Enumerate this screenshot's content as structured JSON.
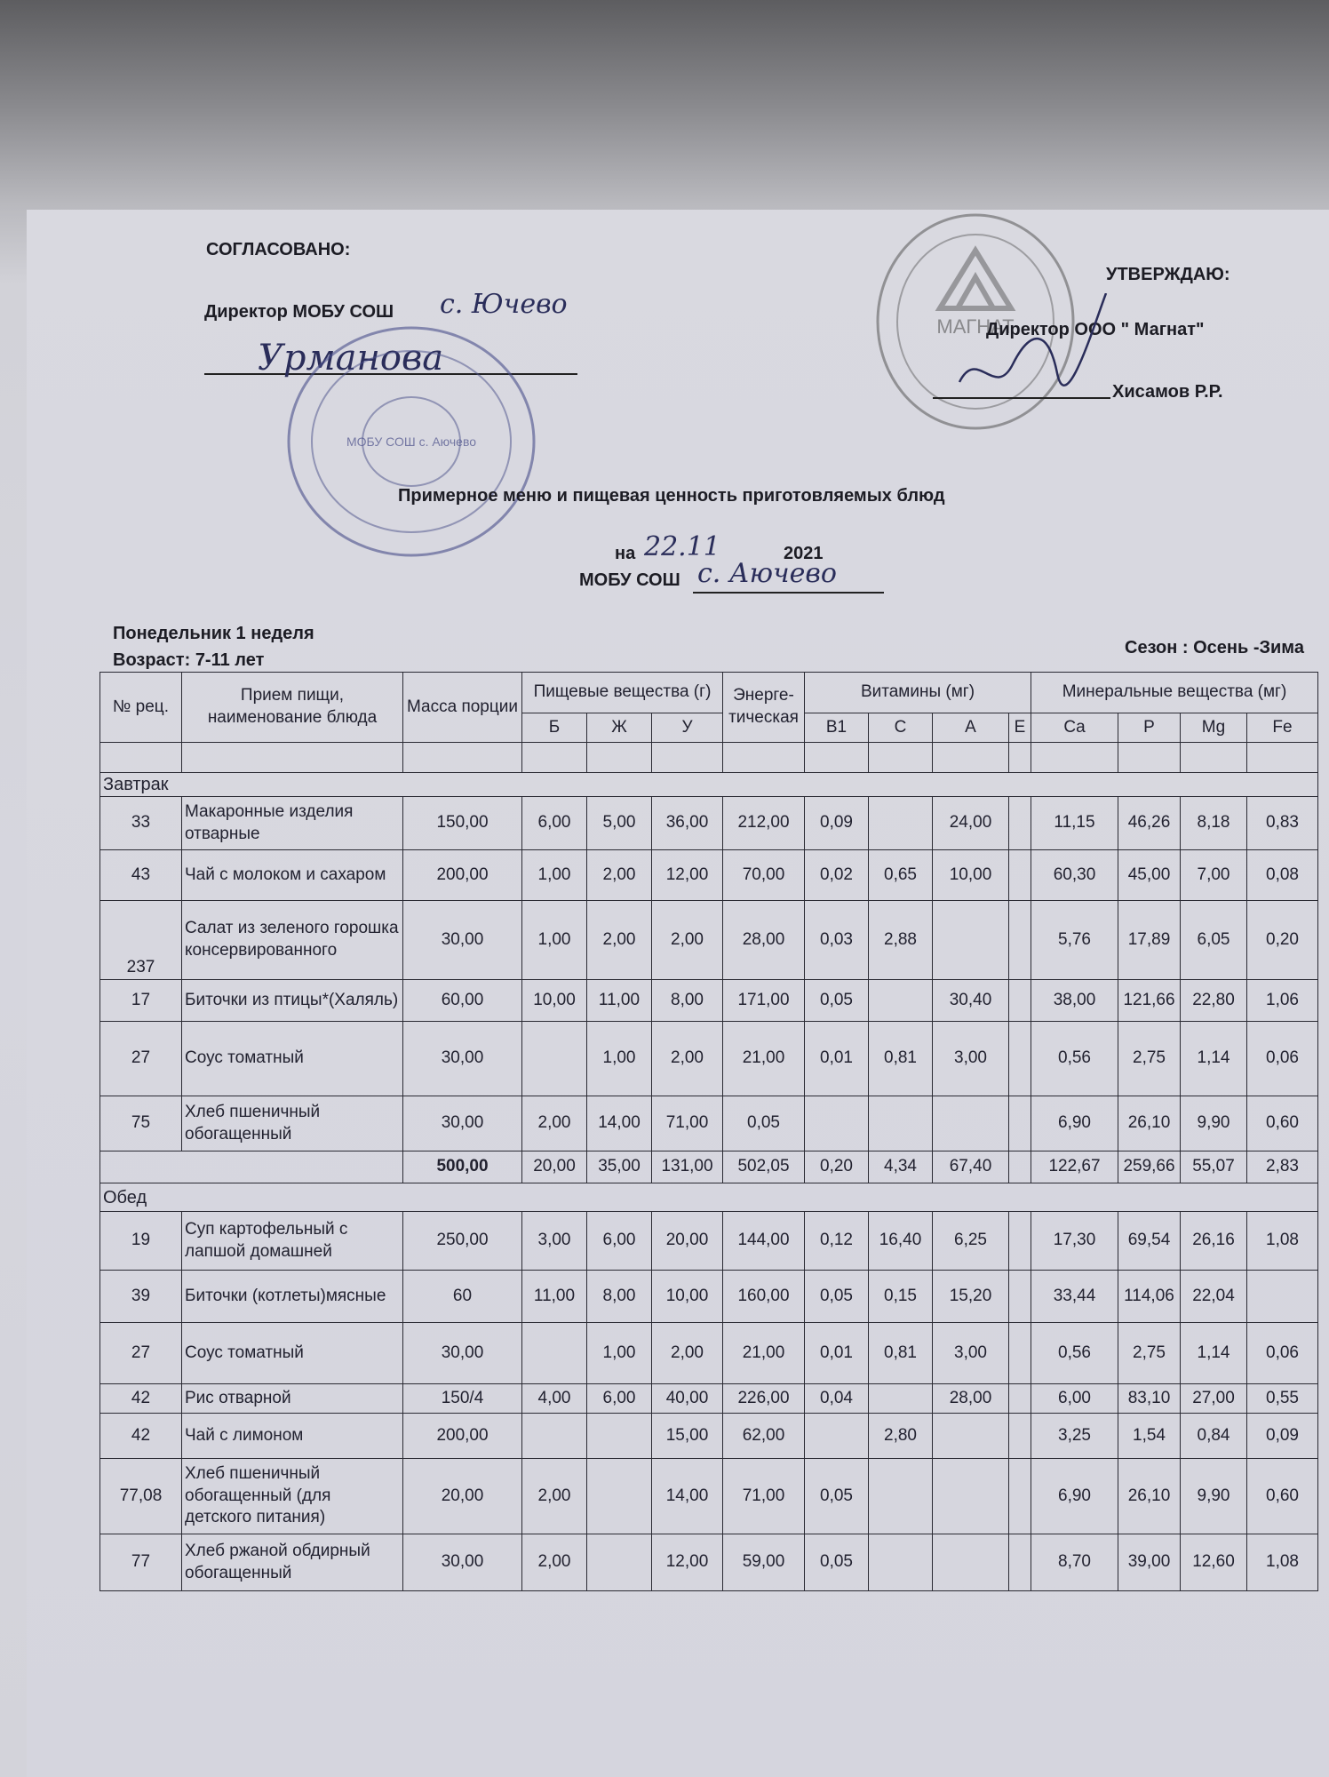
{
  "header": {
    "agreed": "СОГЛАСОВАНО:",
    "agreed_by": "Директор МОБУ СОШ",
    "agreed_by_place_hand": "с. Ючево",
    "agreed_signature": "Урманова",
    "approve": "УТВЕРЖДАЮ:",
    "approve_by": "Директор ООО \" Магнат\"",
    "approve_name": "Хисамов Р.Р.",
    "stamp_left_text": "МОБУ СОШ с. Аючево",
    "stamp_right_text": "МАГНАТ"
  },
  "title": {
    "main": "Примерное меню и пищевая ценность приготовляемых блюд",
    "date_prefix": "на",
    "date_hand": "22.11",
    "year": "2021",
    "school": "МОБУ СОШ",
    "school_hand": "с. Аючево"
  },
  "meta": {
    "day": "Понедельник 1 неделя",
    "age": "Возраст: 7-11 лет",
    "season": "Сезон : Осень -Зима"
  },
  "table": {
    "headers": {
      "num": "№ рец.",
      "name": "Прием пищи, наименование блюда",
      "mass": "Масса порции",
      "nutrients": "Пищевые вещества (г)",
      "energy": "Энерге-тическая",
      "vitamins": "Витамины (мг)",
      "minerals": "Минеральные вещества (мг)",
      "sub": [
        "Б",
        "Ж",
        "У",
        "В1",
        "С",
        "А",
        "Е",
        "Ca",
        "P",
        "Mg",
        "Fe"
      ]
    },
    "sections": [
      {
        "title": "Завтрак",
        "rows": [
          [
            "33",
            "Макаронные изделия отварные",
            "150,00",
            "6,00",
            "5,00",
            "36,00",
            "212,00",
            "0,09",
            "",
            "24,00",
            "",
            "11,15",
            "46,26",
            "8,18",
            "0,83"
          ],
          [
            "43",
            "Чай с молоком и сахаром",
            "200,00",
            "1,00",
            "2,00",
            "12,00",
            "70,00",
            "0,02",
            "0,65",
            "10,00",
            "",
            "60,30",
            "45,00",
            "7,00",
            "0,08"
          ],
          [
            "237",
            "Салат из зеленого горошка консервированного",
            "30,00",
            "1,00",
            "2,00",
            "2,00",
            "28,00",
            "0,03",
            "2,88",
            "",
            "",
            "5,76",
            "17,89",
            "6,05",
            "0,20"
          ],
          [
            "17",
            "Биточки из птицы*(Халяль)",
            "60,00",
            "10,00",
            "11,00",
            "8,00",
            "171,00",
            "0,05",
            "",
            "30,40",
            "",
            "38,00",
            "121,66",
            "22,80",
            "1,06"
          ],
          [
            "27",
            "Соус томатный",
            "30,00",
            "",
            "1,00",
            "2,00",
            "21,00",
            "0,01",
            "0,81",
            "3,00",
            "",
            "0,56",
            "2,75",
            "1,14",
            "0,06"
          ],
          [
            "75",
            "Хлеб пшеничный обогащенный",
            "30,00",
            "2,00",
            "14,00",
            "71,00",
            "0,05",
            "",
            "",
            "",
            "",
            "6,90",
            "26,10",
            "9,90",
            "0,60"
          ]
        ],
        "total": [
          "500,00",
          "20,00",
          "35,00",
          "131,00",
          "502,05",
          "0,20",
          "4,34",
          "67,40",
          "",
          "122,67",
          "259,66",
          "55,07",
          "2,83"
        ]
      },
      {
        "title": "Обед",
        "rows": [
          [
            "19",
            "Суп картофельный с лапшой домашней",
            "250,00",
            "3,00",
            "6,00",
            "20,00",
            "144,00",
            "0,12",
            "16,40",
            "6,25",
            "",
            "17,30",
            "69,54",
            "26,16",
            "1,08"
          ],
          [
            "39",
            "Биточки (котлеты)мясные",
            "60",
            "11,00",
            "8,00",
            "10,00",
            "160,00",
            "0,05",
            "0,15",
            "15,20",
            "",
            "33,44",
            "114,06",
            "22,04",
            ""
          ],
          [
            "27",
            "Соус томатный",
            "30,00",
            "",
            "1,00",
            "2,00",
            "21,00",
            "0,01",
            "0,81",
            "3,00",
            "",
            "0,56",
            "2,75",
            "1,14",
            "0,06"
          ],
          [
            "42",
            "Рис отварной",
            "150/4",
            "4,00",
            "6,00",
            "40,00",
            "226,00",
            "0,04",
            "",
            "28,00",
            "",
            "6,00",
            "83,10",
            "27,00",
            "0,55"
          ],
          [
            "42",
            "Чай с лимоном",
            "200,00",
            "",
            "",
            "15,00",
            "62,00",
            "",
            "2,80",
            "",
            "",
            "3,25",
            "1,54",
            "0,84",
            "0,09"
          ],
          [
            "77,08",
            "Хлеб пшеничный обогащенный (для детского питания)",
            "20,00",
            "2,00",
            "",
            "14,00",
            "71,00",
            "0,05",
            "",
            "",
            "",
            "6,90",
            "26,10",
            "9,90",
            "0,60"
          ],
          [
            "77",
            "Хлеб ржаной обдирный обогащенный",
            "30,00",
            "2,00",
            "",
            "12,00",
            "59,00",
            "0,05",
            "",
            "",
            "",
            "8,70",
            "39,00",
            "12,60",
            "1,08"
          ]
        ]
      }
    ]
  },
  "colors": {
    "ink": "#1c1c24",
    "stamp": "#4a4f8a",
    "paper": "#d7d7df"
  }
}
